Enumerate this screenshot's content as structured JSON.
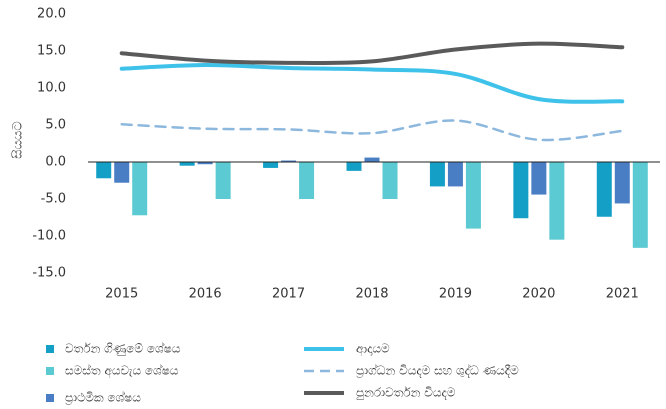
{
  "chart_data": {
    "type": "bar",
    "y_label": "සියයට",
    "categories": [
      "2015",
      "2016",
      "2017",
      "2018",
      "2019",
      "2020",
      "2021"
    ],
    "ylim": [
      -15,
      20
    ],
    "yticks": [
      {
        "value": -15,
        "label": "-15.0"
      },
      {
        "value": -10,
        "label": "-10.0"
      },
      {
        "value": -5,
        "label": "-5.0"
      },
      {
        "value": 0,
        "label": "0.0"
      },
      {
        "value": 5,
        "label": "5.0"
      },
      {
        "value": 10,
        "label": "10.0"
      },
      {
        "value": 15,
        "label": "15.0"
      },
      {
        "value": 20,
        "label": "20.0"
      }
    ],
    "grid": false,
    "series": [
      {
        "name": "වර්තන ගිණුමේ ශේෂය",
        "type": "bar",
        "color": "#14a0c6",
        "values": [
          -2.2,
          -0.5,
          -0.8,
          -1.2,
          -3.3,
          -7.6,
          -7.4
        ]
      },
      {
        "name": "සමස්ත අයවැය ශේෂය",
        "type": "bar",
        "color": "#5ccad2",
        "values": [
          -7.2,
          -5.0,
          -5.0,
          -5.0,
          -9.0,
          -10.5,
          -11.6
        ]
      },
      {
        "name": "ප්‍රාථමික ශේෂය",
        "type": "bar",
        "color": "#4a7ec4",
        "values": [
          -2.8,
          -0.3,
          0.2,
          0.6,
          -3.3,
          -4.4,
          -5.6
        ]
      },
      {
        "name": "ආදායම",
        "type": "line",
        "color": "#3ec2ea",
        "style": "solid",
        "values": [
          12.6,
          13.1,
          12.7,
          12.5,
          11.9,
          8.5,
          8.2
        ]
      },
      {
        "name": "ප්‍රාග්ධන වියදම සහ ශුද්ධ ණයදීම",
        "type": "line",
        "color": "#8db8de",
        "style": "dashed",
        "values": [
          5.1,
          4.5,
          4.4,
          3.9,
          5.6,
          3.0,
          4.2
        ]
      },
      {
        "name": "පුනරාවර්තන වියදම",
        "type": "line",
        "color": "#5a5a5a",
        "style": "solid",
        "values": [
          14.7,
          13.7,
          13.4,
          13.6,
          15.2,
          16.0,
          15.5
        ]
      }
    ]
  }
}
